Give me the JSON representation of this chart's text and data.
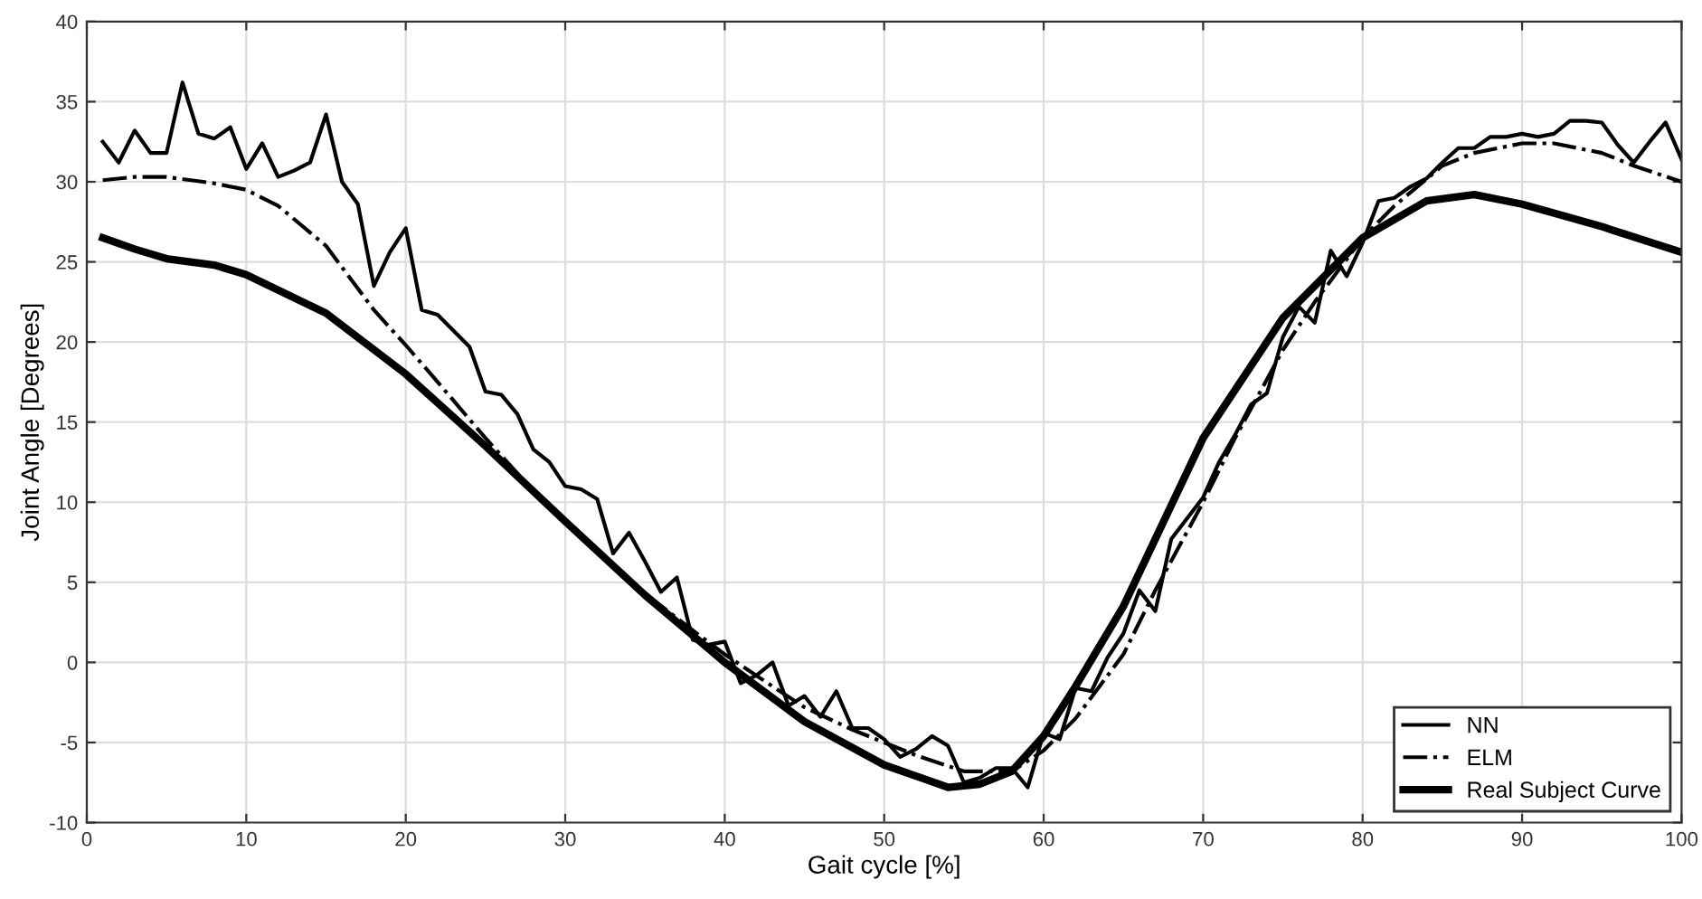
{
  "chart_data": {
    "type": "line",
    "xlabel": "Gait cycle [%]",
    "ylabel": "Joint Angle [Degrees]",
    "xlim": [
      0,
      100
    ],
    "xticks": [
      0,
      10,
      20,
      30,
      40,
      50,
      60,
      70,
      80,
      90,
      100
    ],
    "ylim": [
      -10,
      40
    ],
    "yticks": [
      -10,
      -5,
      0,
      5,
      10,
      15,
      20,
      25,
      30,
      35,
      40
    ],
    "grid": true,
    "legend": "bottom right",
    "series": [
      {
        "name": "NN",
        "color": "#000000",
        "line_style": "solid",
        "x": [
          1,
          2,
          3,
          4,
          5,
          6,
          7,
          8,
          9,
          10,
          11,
          12,
          13,
          14,
          15,
          16,
          17,
          18,
          19,
          20,
          21,
          22,
          23,
          24,
          25,
          26,
          27,
          28,
          29,
          30,
          31,
          32,
          33,
          34,
          35,
          36,
          37,
          38,
          39,
          40,
          41,
          42,
          43,
          44,
          45,
          46,
          47,
          48,
          49,
          50,
          51,
          52,
          53,
          54,
          55,
          56,
          57,
          58,
          59,
          60,
          61,
          62,
          63,
          64,
          65,
          66,
          67,
          68,
          69,
          70,
          71,
          72,
          73,
          74,
          75,
          76,
          77,
          78,
          79,
          80,
          81,
          82,
          83,
          84,
          85,
          86,
          87,
          88,
          89,
          90,
          91,
          92,
          93,
          94,
          95,
          96,
          97,
          98,
          99,
          100
        ],
        "values": [
          32.5,
          31.2,
          33.2,
          31.8,
          31.8,
          36.2,
          33,
          32.7,
          33.4,
          30.8,
          32.4,
          30.3,
          30.7,
          31.2,
          34.2,
          30,
          28.6,
          23.5,
          25.6,
          27.1,
          22,
          21.7,
          20.7,
          19.7,
          16.9,
          16.7,
          15.5,
          13.3,
          12.5,
          11,
          10.8,
          10.2,
          6.8,
          8.1,
          6.3,
          4.4,
          5.3,
          1.4,
          1.1,
          1.3,
          -1.3,
          -0.8,
          0,
          -2.7,
          -2.1,
          -3.4,
          -1.8,
          -4.1,
          -4.1,
          -4.8,
          -5.9,
          -5.4,
          -4.6,
          -5.2,
          -7.5,
          -7.2,
          -6.6,
          -6.6,
          -7.8,
          -4.4,
          -4.8,
          -1.6,
          -1.8,
          0.3,
          1.8,
          4.5,
          3.2,
          7.7,
          9,
          10.3,
          12.5,
          14.2,
          16.1,
          16.8,
          20.3,
          22.2,
          21.2,
          25.7,
          24.1,
          26.2,
          28.8,
          29,
          29.7,
          30.2,
          31.2,
          32.1,
          32.1,
          32.8,
          32.8,
          33,
          32.8,
          33,
          33.8,
          33.8,
          33.7,
          32.3,
          31.2,
          32.5,
          33.7,
          31.4
        ]
      },
      {
        "name": "ELM",
        "color": "#000000",
        "line_style": "dashdot",
        "x": [
          1,
          3,
          5,
          8,
          10,
          12,
          15,
          18,
          20,
          22,
          25,
          28,
          30,
          33,
          35,
          38,
          40,
          43,
          45,
          48,
          50,
          52,
          55,
          58,
          60,
          62,
          65,
          67,
          70,
          72,
          75,
          77,
          80,
          82,
          85,
          87,
          90,
          92,
          95,
          97,
          100
        ],
        "values": [
          30.1,
          30.3,
          30.3,
          29.9,
          29.5,
          28.5,
          26,
          22,
          19.8,
          17.5,
          14,
          10.7,
          8.7,
          6,
          4.3,
          2,
          0.5,
          -1.5,
          -2.8,
          -4.2,
          -5,
          -5.8,
          -6.8,
          -6.8,
          -5.5,
          -3.5,
          0.5,
          4.5,
          10,
          14,
          19.5,
          22.5,
          26.5,
          28.5,
          31,
          31.8,
          32.4,
          32.4,
          31.8,
          31,
          30
        ]
      },
      {
        "name": "Real Subject Curve",
        "color": "#000000",
        "line_style": "solid",
        "x": [
          1,
          3,
          5,
          8,
          10,
          15,
          20,
          25,
          30,
          35,
          40,
          45,
          50,
          54,
          56,
          58,
          60,
          62,
          65,
          70,
          75,
          80,
          84,
          87,
          90,
          95,
          100
        ],
        "values": [
          26.5,
          25.8,
          25.2,
          24.8,
          24.2,
          21.8,
          18,
          13.5,
          8.8,
          4.2,
          0,
          -3.7,
          -6.4,
          -7.8,
          -7.6,
          -6.8,
          -4.6,
          -1.5,
          3.5,
          14,
          21.5,
          26.5,
          28.8,
          29.2,
          28.6,
          27.2,
          25.6
        ]
      }
    ]
  }
}
